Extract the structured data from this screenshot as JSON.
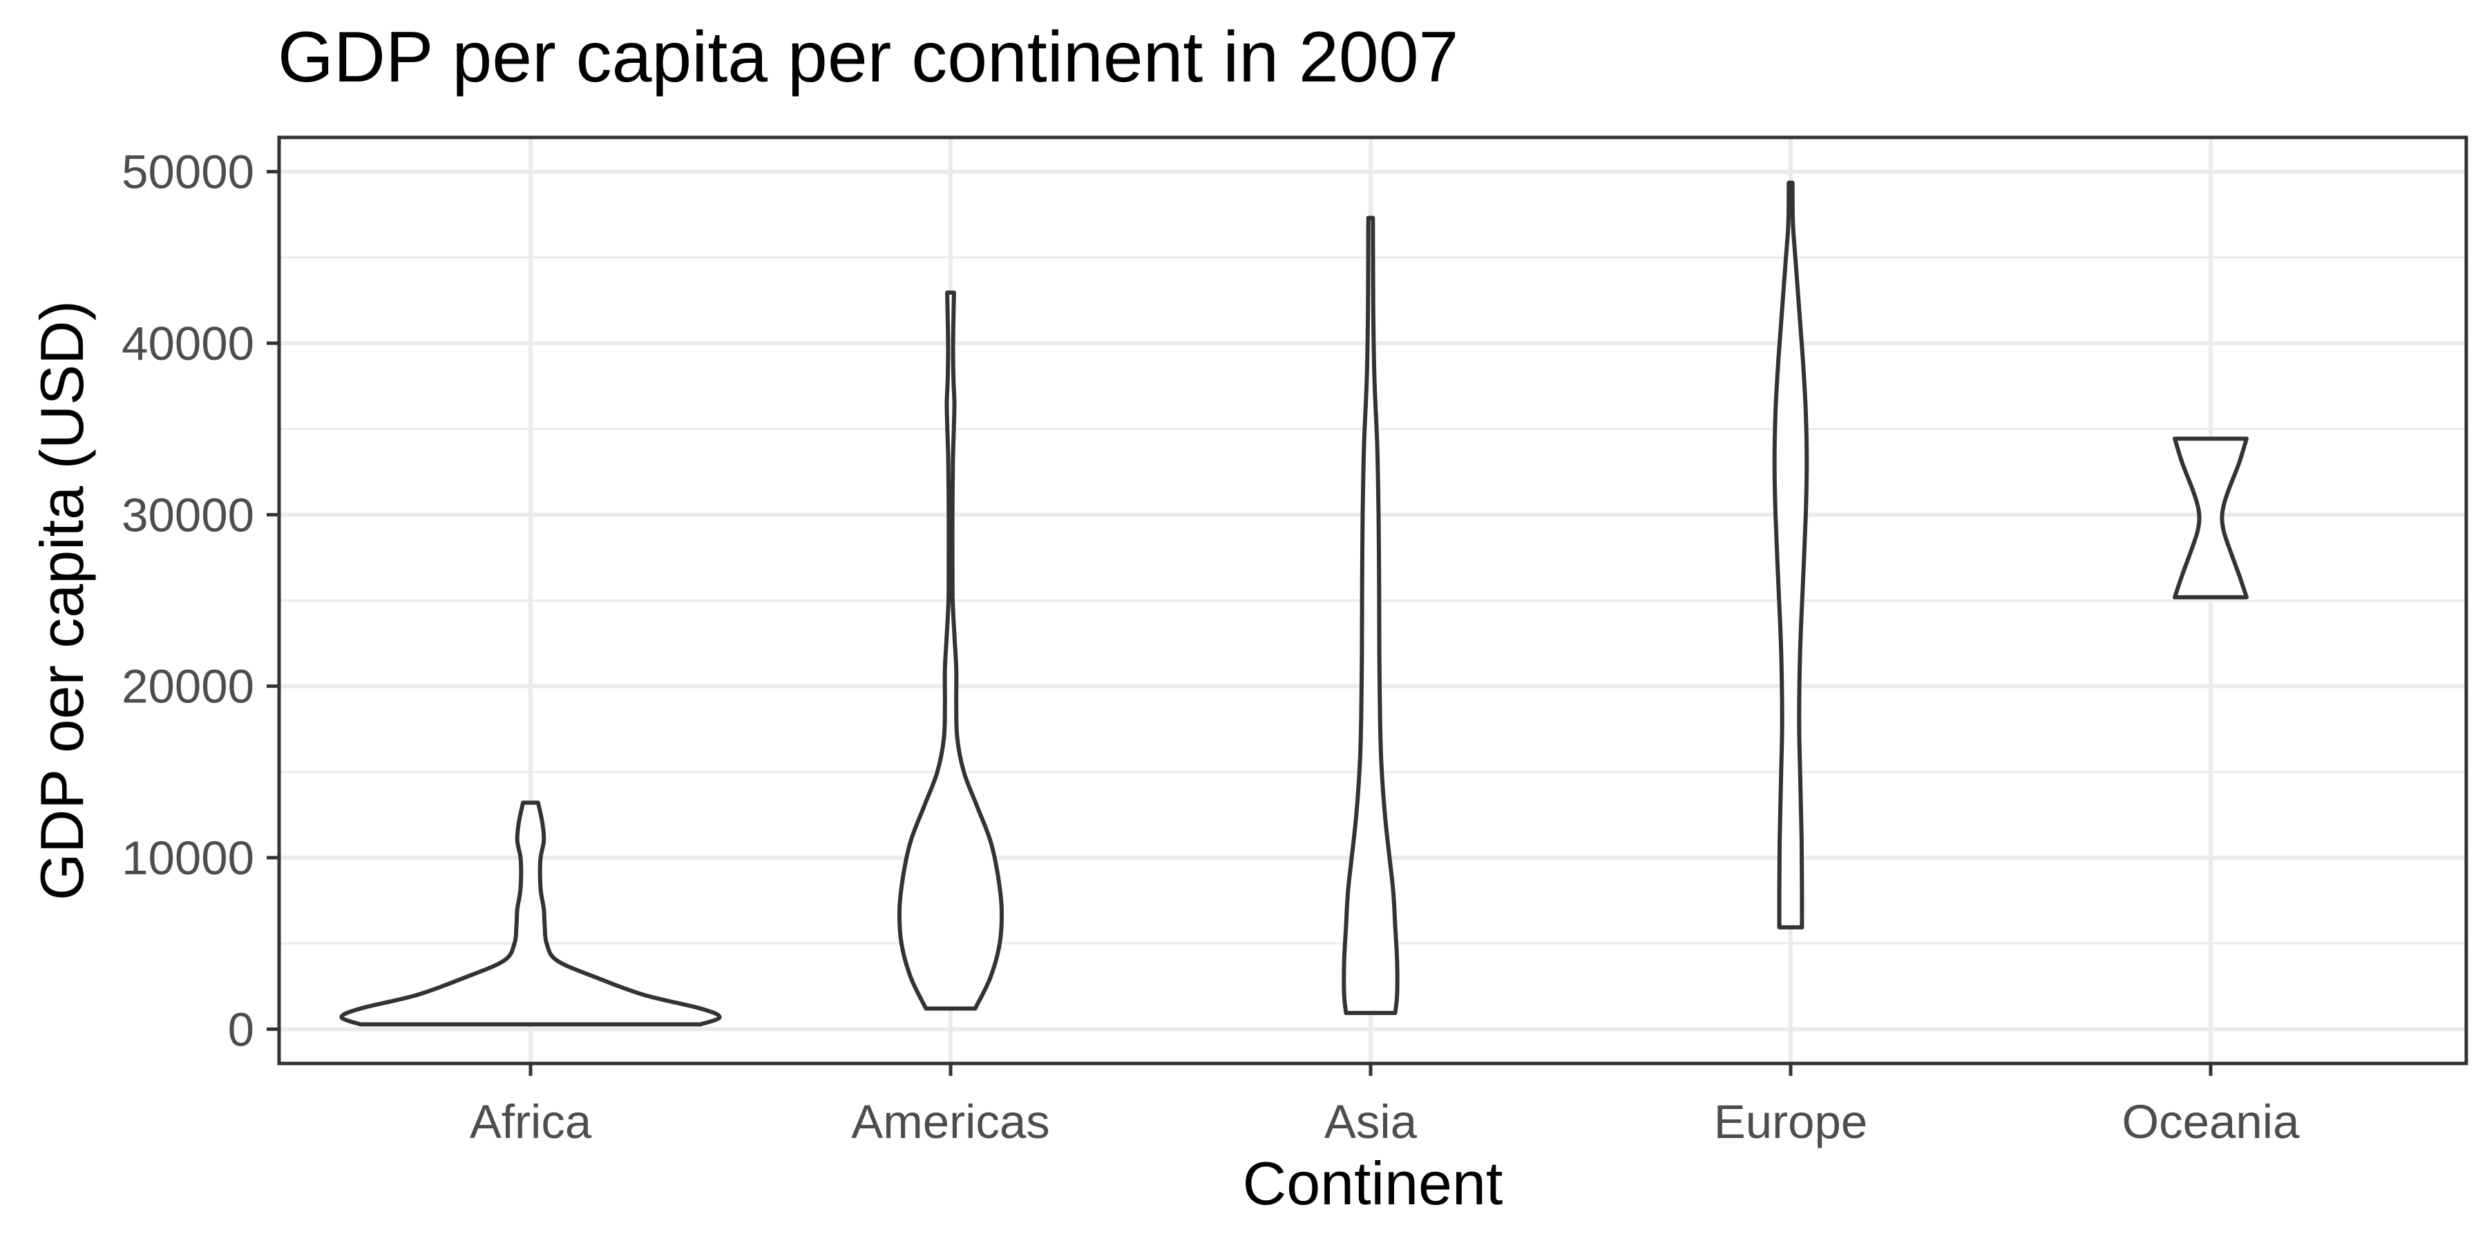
{
  "chart_data": {
    "type": "violin",
    "title": "GDP per capita per continent in 2007",
    "xlabel": "Continent",
    "ylabel": "GDP oer capita (USD)",
    "categories": [
      "Africa",
      "Americas",
      "Asia",
      "Europe",
      "Oceania"
    ],
    "ylim": [
      -2000,
      52000
    ],
    "y_ticks": [
      0,
      10000,
      20000,
      30000,
      40000,
      50000
    ],
    "y_tick_labels": [
      "0",
      "10000",
      "20000",
      "30000",
      "40000",
      "50000"
    ],
    "grid": true,
    "legend": "none",
    "max_density_width": 0.45,
    "violins": [
      {
        "category": "Africa",
        "min": 278,
        "max": 13206,
        "profile": [
          [
            278,
            0.9
          ],
          [
            700,
            1.0
          ],
          [
            1200,
            0.9
          ],
          [
            2000,
            0.6
          ],
          [
            3000,
            0.35
          ],
          [
            4000,
            0.14
          ],
          [
            5000,
            0.085
          ],
          [
            6000,
            0.075
          ],
          [
            7000,
            0.07
          ],
          [
            8000,
            0.055
          ],
          [
            9000,
            0.05
          ],
          [
            10000,
            0.053
          ],
          [
            11000,
            0.07
          ],
          [
            12000,
            0.063
          ],
          [
            13206,
            0.04
          ]
        ]
      },
      {
        "category": "Americas",
        "min": 1202,
        "max": 42952,
        "profile": [
          [
            1202,
            0.13
          ],
          [
            3000,
            0.21
          ],
          [
            5000,
            0.26
          ],
          [
            7000,
            0.27
          ],
          [
            9000,
            0.25
          ],
          [
            11000,
            0.21
          ],
          [
            13000,
            0.14
          ],
          [
            15000,
            0.07
          ],
          [
            17000,
            0.035
          ],
          [
            19000,
            0.03
          ],
          [
            21000,
            0.03
          ],
          [
            23000,
            0.02
          ],
          [
            25000,
            0.011
          ],
          [
            27000,
            0.01
          ],
          [
            30000,
            0.01
          ],
          [
            33000,
            0.012
          ],
          [
            35000,
            0.017
          ],
          [
            36500,
            0.02
          ],
          [
            38000,
            0.015
          ],
          [
            40000,
            0.013
          ],
          [
            42952,
            0.018
          ]
        ]
      },
      {
        "category": "Asia",
        "min": 944,
        "max": 47307,
        "profile": [
          [
            944,
            0.13
          ],
          [
            2000,
            0.14
          ],
          [
            4000,
            0.14
          ],
          [
            6000,
            0.13
          ],
          [
            8000,
            0.12
          ],
          [
            10000,
            0.1
          ],
          [
            12000,
            0.08
          ],
          [
            14000,
            0.065
          ],
          [
            16000,
            0.055
          ],
          [
            18000,
            0.05
          ],
          [
            22000,
            0.046
          ],
          [
            26000,
            0.045
          ],
          [
            30000,
            0.042
          ],
          [
            34000,
            0.035
          ],
          [
            38000,
            0.02
          ],
          [
            42000,
            0.014
          ],
          [
            47307,
            0.012
          ]
        ]
      },
      {
        "category": "Europe",
        "min": 5937,
        "max": 49357,
        "profile": [
          [
            5937,
            0.06
          ],
          [
            8000,
            0.06
          ],
          [
            11000,
            0.058
          ],
          [
            15000,
            0.05
          ],
          [
            18000,
            0.045
          ],
          [
            22000,
            0.05
          ],
          [
            26000,
            0.065
          ],
          [
            30000,
            0.08
          ],
          [
            33000,
            0.085
          ],
          [
            36000,
            0.08
          ],
          [
            39000,
            0.065
          ],
          [
            42000,
            0.045
          ],
          [
            45000,
            0.025
          ],
          [
            47000,
            0.012
          ],
          [
            49357,
            0.01
          ]
        ]
      },
      {
        "category": "Oceania",
        "min": 25185,
        "max": 34435,
        "profile": [
          [
            25185,
            0.19
          ],
          [
            26500,
            0.15
          ],
          [
            28000,
            0.1
          ],
          [
            29000,
            0.07
          ],
          [
            29800,
            0.06
          ],
          [
            30600,
            0.07
          ],
          [
            31600,
            0.1
          ],
          [
            33000,
            0.15
          ],
          [
            34435,
            0.19
          ]
        ]
      }
    ]
  }
}
